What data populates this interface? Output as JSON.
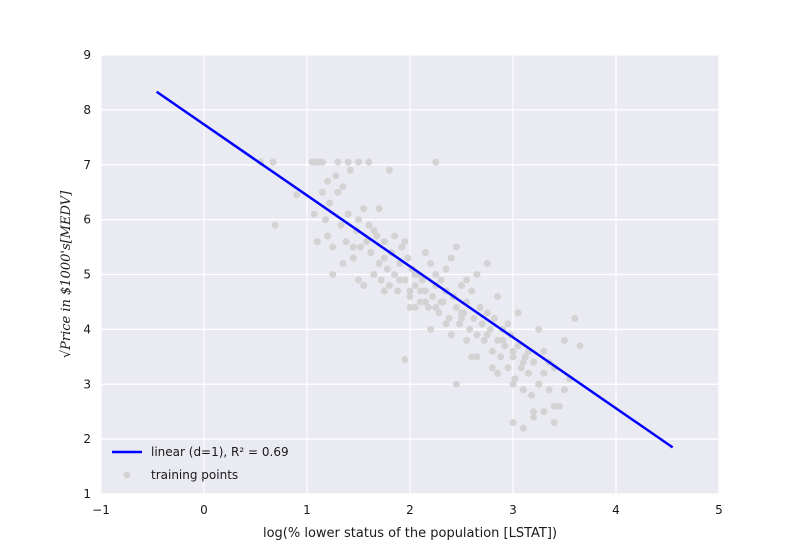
{
  "chart_data": {
    "type": "scatter",
    "xlabel": "log(% lower status of the population [LSTAT])",
    "ylabel": "√Price in $1000's[MEDV]",
    "xlim": [
      -1,
      5
    ],
    "ylim": [
      1,
      9
    ],
    "xticks": [
      "−1",
      "0",
      "1",
      "2",
      "3",
      "4",
      "5"
    ],
    "yticks": [
      "1",
      "2",
      "3",
      "4",
      "5",
      "6",
      "7",
      "8",
      "9"
    ],
    "grid": true,
    "legend_position": "bottom-left",
    "series": [
      {
        "name": "linear (d=1), R² = 0.69",
        "kind": "line",
        "color": "#0000ff",
        "x": [
          -0.46,
          4.55
        ],
        "y": [
          8.33,
          1.85
        ]
      },
      {
        "name": "training points",
        "kind": "scatter",
        "color": "#d3d3d3",
        "x": [
          0.55,
          0.67,
          0.69,
          0.9,
          1.05,
          1.07,
          1.1,
          1.12,
          1.15,
          1.18,
          1.2,
          1.22,
          1.25,
          1.28,
          1.3,
          1.33,
          1.35,
          1.38,
          1.4,
          1.42,
          1.45,
          1.48,
          1.5,
          1.52,
          1.55,
          1.58,
          1.6,
          1.62,
          1.65,
          1.68,
          1.7,
          1.72,
          1.75,
          1.78,
          1.8,
          1.82,
          1.85,
          1.88,
          1.9,
          1.92,
          1.95,
          1.98,
          2.0,
          2.02,
          2.05,
          2.08,
          2.1,
          2.12,
          2.15,
          2.18,
          2.2,
          2.22,
          2.25,
          2.28,
          2.3,
          2.32,
          2.35,
          2.38,
          2.4,
          2.42,
          2.45,
          2.48,
          2.5,
          2.52,
          2.55,
          2.58,
          2.6,
          2.62,
          2.65,
          2.68,
          2.7,
          2.72,
          2.75,
          2.78,
          2.8,
          2.82,
          2.85,
          2.88,
          2.9,
          2.92,
          2.95,
          2.98,
          3.0,
          3.02,
          3.05,
          3.08,
          3.1,
          3.12,
          3.15,
          3.18,
          3.2,
          3.25,
          3.3,
          3.35,
          3.4,
          3.45,
          3.5,
          3.55,
          3.6,
          3.65,
          1.08,
          1.15,
          1.2,
          1.3,
          1.4,
          1.5,
          1.6,
          1.7,
          1.8,
          2.25,
          1.35,
          1.45,
          1.55,
          1.65,
          1.75,
          1.85,
          1.95,
          2.05,
          2.15,
          2.25,
          2.35,
          2.45,
          2.55,
          2.65,
          2.75,
          2.85,
          2.95,
          3.05,
          3.15,
          3.25,
          3.35,
          1.25,
          1.5,
          1.75,
          2.0,
          2.25,
          2.5,
          2.75,
          3.0,
          3.25,
          3.5,
          1.9,
          2.1,
          2.3,
          2.5,
          2.7,
          2.9,
          3.1,
          3.3,
          2.0,
          2.2,
          2.4,
          2.6,
          2.8,
          3.0,
          3.2,
          3.4,
          3.0,
          3.1,
          3.2,
          3.3,
          3.4,
          2.05,
          2.15,
          2.35,
          2.55,
          2.65,
          2.85,
          1.95,
          2.45
        ],
        "y": [
          7.05,
          7.05,
          5.9,
          6.45,
          7.05,
          6.1,
          5.6,
          7.05,
          6.5,
          6.0,
          5.7,
          6.3,
          5.5,
          6.8,
          7.05,
          5.9,
          6.6,
          5.6,
          6.1,
          6.9,
          5.3,
          5.8,
          6.0,
          5.5,
          4.8,
          5.6,
          5.9,
          5.4,
          5.0,
          5.7,
          5.2,
          4.9,
          5.6,
          5.1,
          4.8,
          5.4,
          5.0,
          4.7,
          5.2,
          5.5,
          4.9,
          5.3,
          4.6,
          5.1,
          4.8,
          5.0,
          4.5,
          4.9,
          4.7,
          4.4,
          5.2,
          4.6,
          4.8,
          4.3,
          4.9,
          4.5,
          4.7,
          4.2,
          5.3,
          4.6,
          4.4,
          4.1,
          4.8,
          4.3,
          4.5,
          4.0,
          4.7,
          4.2,
          3.9,
          4.4,
          4.1,
          3.8,
          4.3,
          4.0,
          3.6,
          4.2,
          3.8,
          3.5,
          4.0,
          3.7,
          3.3,
          3.9,
          3.5,
          3.1,
          3.7,
          3.3,
          2.9,
          3.5,
          3.2,
          2.8,
          3.4,
          3.0,
          3.6,
          2.9,
          3.3,
          2.6,
          3.8,
          3.1,
          4.2,
          3.7,
          7.05,
          7.05,
          6.7,
          6.5,
          7.05,
          7.05,
          7.05,
          6.2,
          6.9,
          7.05,
          5.2,
          5.5,
          6.2,
          5.8,
          5.3,
          5.7,
          5.6,
          5.0,
          5.4,
          5.0,
          5.1,
          5.5,
          4.9,
          5.0,
          5.2,
          4.6,
          4.1,
          4.3,
          3.6,
          4.0,
          3.4,
          5.0,
          4.9,
          4.7,
          4.7,
          4.4,
          4.2,
          3.9,
          3.6,
          3.0,
          2.9,
          4.9,
          4.7,
          4.5,
          4.3,
          4.1,
          3.8,
          3.4,
          3.2,
          4.4,
          4.0,
          3.9,
          3.5,
          3.3,
          3.0,
          2.5,
          2.6,
          2.3,
          2.2,
          2.4,
          2.5,
          2.3,
          4.4,
          4.5,
          4.1,
          3.8,
          3.5,
          3.2,
          3.45,
          3.0
        ]
      }
    ]
  }
}
